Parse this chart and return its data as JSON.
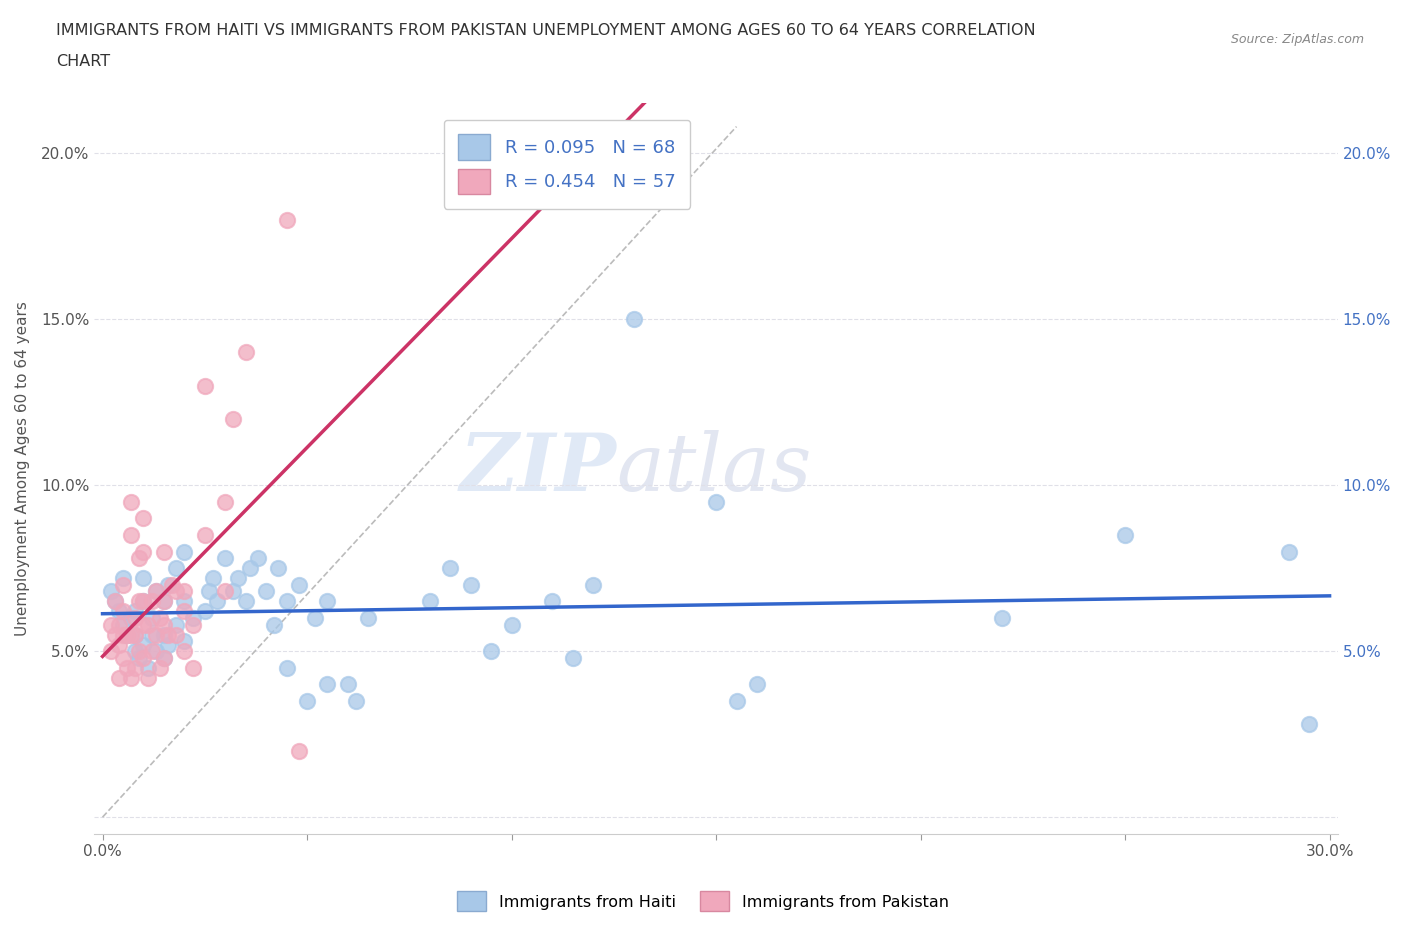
{
  "title_line1": "IMMIGRANTS FROM HAITI VS IMMIGRANTS FROM PAKISTAN UNEMPLOYMENT AMONG AGES 60 TO 64 YEARS CORRELATION",
  "title_line2": "CHART",
  "source": "Source: ZipAtlas.com",
  "ylabel": "Unemployment Among Ages 60 to 64 years",
  "xlabel": "",
  "xlim": [
    -0.002,
    0.302
  ],
  "ylim": [
    -0.005,
    0.215
  ],
  "xticks": [
    0.0,
    0.05,
    0.1,
    0.15,
    0.2,
    0.25,
    0.3
  ],
  "xtick_labels": [
    "0.0%",
    "",
    "",
    "",
    "",
    "",
    "30.0%"
  ],
  "yticks": [
    0.0,
    0.05,
    0.1,
    0.15,
    0.2
  ],
  "ytick_labels": [
    "",
    "5.0%",
    "10.0%",
    "15.0%",
    "20.0%"
  ],
  "right_ytick_labels": [
    "",
    "5.0%",
    "10.0%",
    "15.0%",
    "20.0%"
  ],
  "haiti_color": "#a8c8e8",
  "pakistan_color": "#f0a8bc",
  "haiti_trend_color": "#3366cc",
  "pakistan_trend_color": "#cc3366",
  "haiti_R": 0.095,
  "haiti_N": 68,
  "pakistan_R": 0.454,
  "pakistan_N": 57,
  "legend_haiti": "Immigrants from Haiti",
  "legend_pakistan": "Immigrants from Pakistan",
  "watermark_zip": "ZIP",
  "watermark_atlas": "atlas",
  "background_color": "#ffffff",
  "grid_color": "#e0e0e8",
  "haiti_scatter": [
    [
      0.002,
      0.068
    ],
    [
      0.003,
      0.065
    ],
    [
      0.004,
      0.062
    ],
    [
      0.005,
      0.058
    ],
    [
      0.005,
      0.072
    ],
    [
      0.006,
      0.055
    ],
    [
      0.007,
      0.06
    ],
    [
      0.008,
      0.05
    ],
    [
      0.008,
      0.055
    ],
    [
      0.008,
      0.062
    ],
    [
      0.009,
      0.048
    ],
    [
      0.01,
      0.052
    ],
    [
      0.01,
      0.065
    ],
    [
      0.01,
      0.072
    ],
    [
      0.011,
      0.045
    ],
    [
      0.012,
      0.055
    ],
    [
      0.012,
      0.06
    ],
    [
      0.013,
      0.05
    ],
    [
      0.013,
      0.068
    ],
    [
      0.015,
      0.048
    ],
    [
      0.015,
      0.055
    ],
    [
      0.015,
      0.065
    ],
    [
      0.016,
      0.052
    ],
    [
      0.016,
      0.07
    ],
    [
      0.018,
      0.058
    ],
    [
      0.018,
      0.075
    ],
    [
      0.02,
      0.053
    ],
    [
      0.02,
      0.065
    ],
    [
      0.02,
      0.08
    ],
    [
      0.022,
      0.06
    ],
    [
      0.025,
      0.062
    ],
    [
      0.026,
      0.068
    ],
    [
      0.027,
      0.072
    ],
    [
      0.028,
      0.065
    ],
    [
      0.03,
      0.078
    ],
    [
      0.032,
      0.068
    ],
    [
      0.033,
      0.072
    ],
    [
      0.035,
      0.065
    ],
    [
      0.036,
      0.075
    ],
    [
      0.038,
      0.078
    ],
    [
      0.04,
      0.068
    ],
    [
      0.042,
      0.058
    ],
    [
      0.043,
      0.075
    ],
    [
      0.045,
      0.045
    ],
    [
      0.045,
      0.065
    ],
    [
      0.048,
      0.07
    ],
    [
      0.05,
      0.035
    ],
    [
      0.052,
      0.06
    ],
    [
      0.055,
      0.04
    ],
    [
      0.055,
      0.065
    ],
    [
      0.06,
      0.04
    ],
    [
      0.062,
      0.035
    ],
    [
      0.065,
      0.06
    ],
    [
      0.08,
      0.065
    ],
    [
      0.085,
      0.075
    ],
    [
      0.09,
      0.07
    ],
    [
      0.095,
      0.05
    ],
    [
      0.1,
      0.058
    ],
    [
      0.11,
      0.065
    ],
    [
      0.115,
      0.048
    ],
    [
      0.12,
      0.07
    ],
    [
      0.13,
      0.15
    ],
    [
      0.15,
      0.095
    ],
    [
      0.155,
      0.035
    ],
    [
      0.16,
      0.04
    ],
    [
      0.22,
      0.06
    ],
    [
      0.25,
      0.085
    ],
    [
      0.29,
      0.08
    ],
    [
      0.295,
      0.028
    ]
  ],
  "pakistan_scatter": [
    [
      0.002,
      0.05
    ],
    [
      0.002,
      0.058
    ],
    [
      0.003,
      0.065
    ],
    [
      0.003,
      0.055
    ],
    [
      0.004,
      0.042
    ],
    [
      0.004,
      0.052
    ],
    [
      0.004,
      0.058
    ],
    [
      0.005,
      0.048
    ],
    [
      0.005,
      0.055
    ],
    [
      0.005,
      0.062
    ],
    [
      0.005,
      0.07
    ],
    [
      0.006,
      0.045
    ],
    [
      0.006,
      0.055
    ],
    [
      0.007,
      0.042
    ],
    [
      0.007,
      0.055
    ],
    [
      0.007,
      0.085
    ],
    [
      0.007,
      0.095
    ],
    [
      0.008,
      0.045
    ],
    [
      0.008,
      0.055
    ],
    [
      0.008,
      0.06
    ],
    [
      0.009,
      0.05
    ],
    [
      0.009,
      0.065
    ],
    [
      0.009,
      0.078
    ],
    [
      0.01,
      0.048
    ],
    [
      0.01,
      0.058
    ],
    [
      0.01,
      0.065
    ],
    [
      0.01,
      0.08
    ],
    [
      0.01,
      0.09
    ],
    [
      0.011,
      0.042
    ],
    [
      0.011,
      0.058
    ],
    [
      0.012,
      0.05
    ],
    [
      0.012,
      0.065
    ],
    [
      0.013,
      0.055
    ],
    [
      0.013,
      0.068
    ],
    [
      0.014,
      0.045
    ],
    [
      0.014,
      0.06
    ],
    [
      0.015,
      0.048
    ],
    [
      0.015,
      0.058
    ],
    [
      0.015,
      0.065
    ],
    [
      0.015,
      0.08
    ],
    [
      0.016,
      0.055
    ],
    [
      0.017,
      0.07
    ],
    [
      0.018,
      0.055
    ],
    [
      0.018,
      0.068
    ],
    [
      0.02,
      0.05
    ],
    [
      0.02,
      0.062
    ],
    [
      0.02,
      0.068
    ],
    [
      0.022,
      0.045
    ],
    [
      0.022,
      0.058
    ],
    [
      0.025,
      0.085
    ],
    [
      0.025,
      0.13
    ],
    [
      0.03,
      0.068
    ],
    [
      0.03,
      0.095
    ],
    [
      0.032,
      0.12
    ],
    [
      0.035,
      0.14
    ],
    [
      0.045,
      0.18
    ],
    [
      0.048,
      0.02
    ]
  ]
}
